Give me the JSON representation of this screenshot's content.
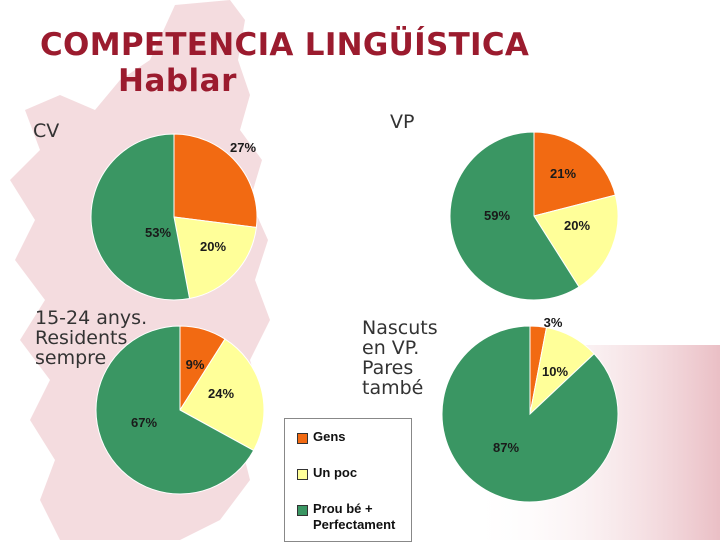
{
  "header": {
    "title": "COMPETENCIA LINGÜÍSTICA",
    "subtitle": "Hablar"
  },
  "colors": {
    "gens": "#f26a12",
    "un_poc": "#ffff99",
    "prou_be": "#3a9663",
    "title": "#9b1b2e",
    "decor": "#e3b4bb"
  },
  "legend": {
    "items": [
      {
        "label": "Gens",
        "color": "#f26a12"
      },
      {
        "label": "Un poc",
        "color": "#ffff99"
      },
      {
        "label": "Prou bé +\nPerfectament",
        "color": "#3a9663"
      }
    ]
  },
  "chart_data": [
    {
      "type": "pie",
      "title": "CV",
      "categories": [
        "Gens",
        "Un poc",
        "Prou bé + Perfectament"
      ],
      "values": [
        27,
        20,
        53
      ],
      "data_labels": [
        "27%",
        "20%",
        "53%"
      ]
    },
    {
      "type": "pie",
      "title": "VP",
      "categories": [
        "Gens",
        "Un poc",
        "Prou bé + Perfectament"
      ],
      "values": [
        21,
        20,
        59
      ],
      "data_labels": [
        "21%",
        "20%",
        "59%"
      ]
    },
    {
      "type": "pie",
      "title": "15-24 anys.\nResidents\nsempre",
      "categories": [
        "Gens",
        "Un poc",
        "Prou bé + Perfectament"
      ],
      "values": [
        9,
        24,
        67
      ],
      "data_labels": [
        "9%",
        "24%",
        "67%"
      ]
    },
    {
      "type": "pie",
      "title": "Nascuts\nen VP.\nPares\ntambé",
      "categories": [
        "Gens",
        "Un poc",
        "Prou bé + Perfectament"
      ],
      "values": [
        3,
        10,
        87
      ],
      "data_labels": [
        "3%",
        "10%",
        "87%"
      ]
    }
  ]
}
